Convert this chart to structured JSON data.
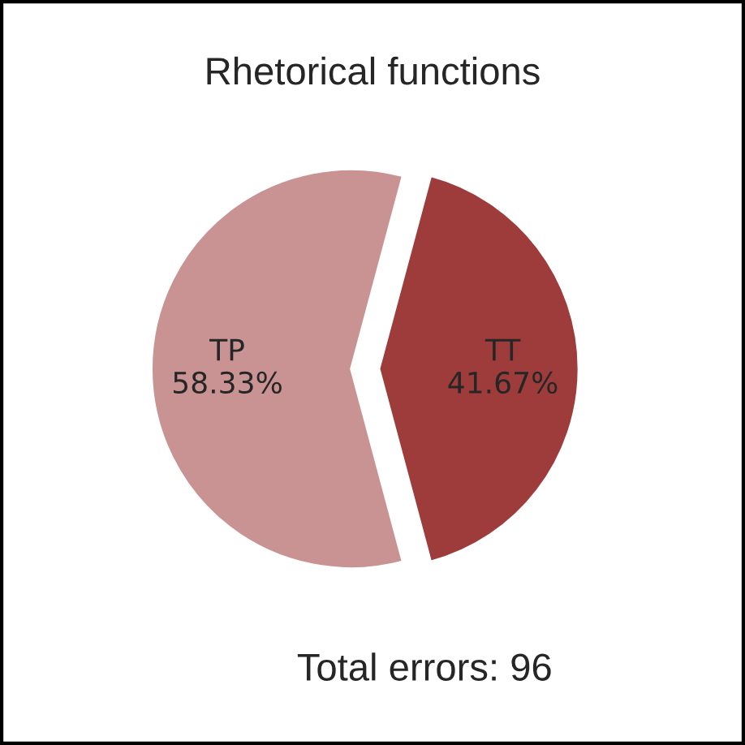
{
  "chart_data": {
    "type": "pie",
    "title": "Rhetorical functions",
    "categories": [
      "TP",
      "TT"
    ],
    "values": [
      58.33,
      41.67
    ],
    "value_labels": [
      "58.33%",
      "41.67%"
    ],
    "colors": [
      "#c99393",
      "#9e3c3c"
    ],
    "annotations": [
      "Total errors: 96"
    ]
  }
}
